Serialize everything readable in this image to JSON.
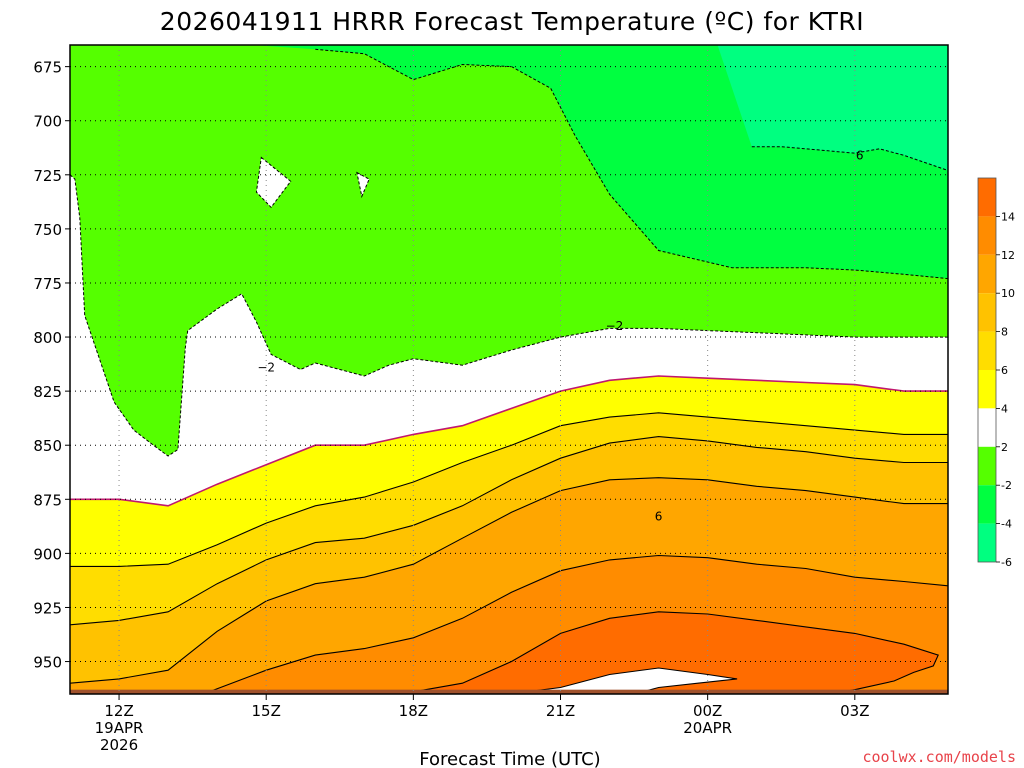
{
  "chart_data": {
    "type": "heatmap",
    "title": "2026041911 HRRR Forecast Temperature (ºC) for KTRI",
    "xlabel": "Forecast Time (UTC)",
    "ylabel": "",
    "credit": "coolwx.com/models",
    "x_unit": "hours UTC from 2026-04-19 11Z",
    "xlim": [
      11,
      28.9
    ],
    "ylim": [
      965,
      665
    ],
    "y_scale": "pressure (hPa), inverted",
    "grid": true,
    "x_ticks": [
      {
        "x": 12,
        "lines": [
          "12Z",
          "19APR",
          "2026"
        ]
      },
      {
        "x": 15,
        "lines": [
          "15Z"
        ]
      },
      {
        "x": 18,
        "lines": [
          "18Z"
        ]
      },
      {
        "x": 21,
        "lines": [
          "21Z"
        ]
      },
      {
        "x": 24,
        "lines": [
          "00Z",
          "20APR"
        ]
      },
      {
        "x": 27,
        "lines": [
          "03Z"
        ]
      }
    ],
    "y_ticks": [
      "675",
      "700",
      "725",
      "750",
      "775",
      "800",
      "825",
      "850",
      "875",
      "900",
      "925",
      "950"
    ],
    "colorbar": {
      "position": "right",
      "bins": [
        {
          "min": -8,
          "max": -6,
          "color": "#00ff80"
        },
        {
          "min": -6,
          "max": -4,
          "color": "#00ff40"
        },
        {
          "min": -4,
          "max": -2,
          "color": "#55ff00"
        },
        {
          "min": -2,
          "max": 2,
          "color": "#ffffff"
        },
        {
          "min": 2,
          "max": 4,
          "color": "#ffff00"
        },
        {
          "min": 4,
          "max": 6,
          "color": "#ffdd00"
        },
        {
          "min": 6,
          "max": 8,
          "color": "#ffc200"
        },
        {
          "min": 8,
          "max": 10,
          "color": "#ffa600"
        },
        {
          "min": 10,
          "max": 12,
          "color": "#ff8c00"
        },
        {
          "min": 12,
          "max": 14,
          "color": "#ff6c00"
        }
      ],
      "labels": [
        "14",
        "12",
        "10",
        "8",
        "6",
        "4",
        "2",
        "-2",
        "-4",
        "-6"
      ]
    },
    "ground_color": "#a0522d",
    "cold_bands": [
      {
        "name": "-4",
        "color": "#00ff40",
        "points": [
          [
            11,
            665
          ],
          [
            14.7,
            665
          ],
          [
            16,
            667
          ],
          [
            17,
            669
          ],
          [
            18,
            681
          ],
          [
            19,
            674
          ],
          [
            20,
            675
          ],
          [
            20.8,
            685
          ],
          [
            21.3,
            707
          ],
          [
            22,
            734
          ],
          [
            23,
            760
          ],
          [
            24.5,
            768
          ],
          [
            26,
            768
          ],
          [
            27,
            769
          ],
          [
            28,
            771
          ],
          [
            28.9,
            773
          ],
          [
            28.9,
            665
          ]
        ]
      },
      {
        "name": "-6",
        "color": "#00ff80",
        "points": [
          [
            11,
            665
          ],
          [
            24.2,
            665
          ],
          [
            24.9,
            712
          ],
          [
            25.5,
            712
          ],
          [
            26,
            713
          ],
          [
            27,
            715
          ],
          [
            27.5,
            713
          ],
          [
            28,
            716
          ],
          [
            28.9,
            723
          ],
          [
            28.9,
            665
          ]
        ]
      }
    ],
    "cold_holes": [
      [
        [
          14.9,
          717
        ],
        [
          15.5,
          728
        ],
        [
          15.1,
          740
        ],
        [
          14.8,
          733
        ]
      ],
      [
        [
          16.85,
          724
        ],
        [
          17.1,
          727
        ],
        [
          16.95,
          735
        ]
      ]
    ],
    "minus2_boundary": [
      [
        11,
        725
      ],
      [
        11.1,
        727
      ],
      [
        11.2,
        745
      ],
      [
        11.3,
        790
      ],
      [
        11.6,
        810
      ],
      [
        11.9,
        830
      ],
      [
        12.3,
        843
      ],
      [
        12.7,
        850
      ],
      [
        13.0,
        855
      ],
      [
        13.2,
        852
      ],
      [
        13.35,
        805
      ],
      [
        13.4,
        797
      ],
      [
        14.0,
        787
      ],
      [
        14.5,
        780
      ],
      [
        14.8,
        793
      ],
      [
        15.1,
        808
      ],
      [
        15.7,
        815
      ],
      [
        16.0,
        812
      ],
      [
        16.5,
        815
      ],
      [
        17.0,
        818
      ],
      [
        17.5,
        813
      ],
      [
        18.0,
        810
      ],
      [
        19.0,
        813
      ],
      [
        20.0,
        806
      ],
      [
        21.0,
        800
      ],
      [
        22.0,
        796
      ],
      [
        23.0,
        796
      ],
      [
        24.0,
        797
      ],
      [
        25.0,
        798
      ],
      [
        26.0,
        799
      ],
      [
        27.0,
        800
      ],
      [
        28.0,
        800
      ],
      [
        28.9,
        800
      ]
    ],
    "warm_contours": [
      {
        "value": 2,
        "points": [
          [
            11,
            875
          ],
          [
            12,
            875
          ],
          [
            13,
            878
          ],
          [
            14,
            868
          ],
          [
            15,
            859
          ],
          [
            16,
            850
          ],
          [
            17,
            850
          ],
          [
            18,
            845
          ],
          [
            19,
            841
          ],
          [
            20,
            833
          ],
          [
            21,
            825
          ],
          [
            22,
            820
          ],
          [
            23,
            818
          ],
          [
            24,
            819
          ],
          [
            25,
            820
          ],
          [
            26,
            821
          ],
          [
            27,
            822
          ],
          [
            28,
            825
          ],
          [
            28.9,
            825
          ]
        ]
      },
      {
        "value": 4,
        "points": [
          [
            11,
            906
          ],
          [
            12,
            906
          ],
          [
            13,
            905
          ],
          [
            14,
            896
          ],
          [
            15,
            886
          ],
          [
            16,
            878
          ],
          [
            17,
            874
          ],
          [
            18,
            867
          ],
          [
            19,
            858
          ],
          [
            20,
            850
          ],
          [
            21,
            841
          ],
          [
            22,
            837
          ],
          [
            23,
            835
          ],
          [
            24,
            837
          ],
          [
            25,
            839
          ],
          [
            26,
            841
          ],
          [
            27,
            843
          ],
          [
            28,
            845
          ],
          [
            28.9,
            845
          ]
        ]
      },
      {
        "value": 6,
        "points": [
          [
            11,
            933
          ],
          [
            12,
            931
          ],
          [
            13,
            927
          ],
          [
            14,
            914
          ],
          [
            15,
            903
          ],
          [
            16,
            895
          ],
          [
            17,
            893
          ],
          [
            18,
            887
          ],
          [
            19,
            878
          ],
          [
            20,
            866
          ],
          [
            21,
            856
          ],
          [
            22,
            849
          ],
          [
            23,
            846
          ],
          [
            24,
            848
          ],
          [
            25,
            851
          ],
          [
            26,
            853
          ],
          [
            27,
            856
          ],
          [
            28,
            858
          ],
          [
            28.9,
            858
          ]
        ]
      },
      {
        "value": 8,
        "points": [
          [
            11,
            960
          ],
          [
            12,
            958
          ],
          [
            13,
            954
          ],
          [
            14,
            936
          ],
          [
            15,
            922
          ],
          [
            16,
            914
          ],
          [
            17,
            911
          ],
          [
            18,
            905
          ],
          [
            19,
            893
          ],
          [
            20,
            881
          ],
          [
            21,
            871
          ],
          [
            22,
            866
          ],
          [
            23,
            865
          ],
          [
            24,
            866
          ],
          [
            25,
            869
          ],
          [
            26,
            871
          ],
          [
            27,
            874
          ],
          [
            28,
            877
          ],
          [
            28.9,
            877
          ]
        ]
      },
      {
        "value": 10,
        "points": [
          [
            13.6,
            966
          ],
          [
            15,
            954
          ],
          [
            16,
            947
          ],
          [
            17,
            944
          ],
          [
            18,
            939
          ],
          [
            19,
            930
          ],
          [
            20,
            918
          ],
          [
            21,
            908
          ],
          [
            22,
            903
          ],
          [
            23,
            901
          ],
          [
            24,
            902
          ],
          [
            25,
            905
          ],
          [
            26,
            907
          ],
          [
            27,
            911
          ],
          [
            28,
            913
          ],
          [
            28.9,
            915
          ]
        ]
      },
      {
        "value": 12,
        "points": [
          [
            15,
            968
          ],
          [
            18,
            964
          ],
          [
            19,
            960
          ],
          [
            20,
            950
          ],
          [
            21,
            937
          ],
          [
            22,
            930
          ],
          [
            23,
            927
          ],
          [
            24,
            928
          ],
          [
            25,
            931
          ],
          [
            26,
            934
          ],
          [
            27,
            937
          ],
          [
            28,
            942
          ],
          [
            28.7,
            947
          ],
          [
            28.6,
            952
          ],
          [
            28.2,
            955
          ],
          [
            27.8,
            959
          ],
          [
            27,
            963
          ],
          [
            26.5,
            965
          ]
        ]
      },
      {
        "value": 14,
        "points": [
          [
            19.6,
            966
          ],
          [
            21,
            962
          ],
          [
            22,
            956
          ],
          [
            23,
            953
          ],
          [
            24,
            956
          ],
          [
            24.6,
            958
          ],
          [
            23.8,
            960
          ],
          [
            23,
            962
          ],
          [
            22.5,
            965
          ]
        ]
      }
    ],
    "contour_labels": [
      {
        "text": "6",
        "x": 27.1,
        "y": 716
      },
      {
        "text": "−2",
        "x": 22.1,
        "y": 795
      },
      {
        "text": "−2",
        "x": 15.0,
        "y": 814
      },
      {
        "text": "6",
        "x": 23.0,
        "y": 883
      }
    ]
  }
}
